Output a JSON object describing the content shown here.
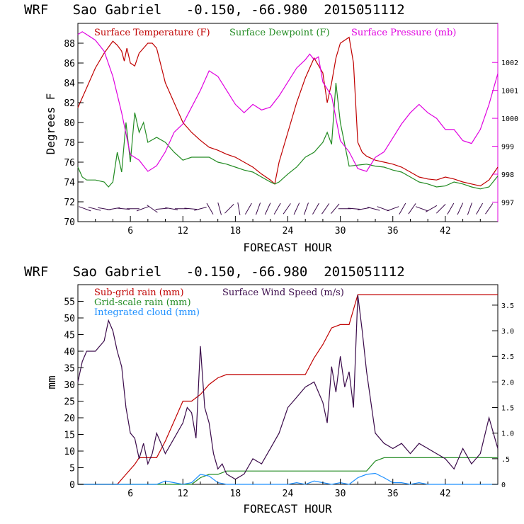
{
  "colors": {
    "temperature": "#c00000",
    "dewpoint": "#228b22",
    "pressure": "#e000e0",
    "subgrid": "#c00000",
    "gridscale": "#228b22",
    "cloud": "#1e90ff",
    "wind": "#3a0a4a",
    "axis": "#000000"
  },
  "chart_data": [
    {
      "type": "line",
      "title": "WRF   Sao Gabriel   -0.150, -66.980  2015051112",
      "xlabel": "FORECAST HOUR",
      "ylabel": "Degrees F",
      "xlim": [
        0,
        48
      ],
      "ylim": [
        70,
        90
      ],
      "y2lim": [
        996.3,
        1003.4
      ],
      "xticks": [
        6,
        12,
        18,
        24,
        30,
        36,
        42
      ],
      "yticks": [
        70,
        72,
        74,
        76,
        78,
        80,
        82,
        84,
        86,
        88
      ],
      "y2ticks": [
        997,
        998,
        999,
        1000,
        1001,
        1002
      ],
      "legend": [
        "Surface Temperature (F)",
        "Surface Dewpoint (F)",
        "Surface Pressure (mb)"
      ],
      "series": [
        {
          "name": "Surface Temperature (F)",
          "axis": "left",
          "color_key": "temperature",
          "x": [
            0,
            1,
            2,
            3,
            4,
            4.5,
            5,
            5.3,
            5.6,
            6,
            6.5,
            7,
            7.5,
            8,
            8.5,
            9,
            10,
            11,
            12,
            13,
            14,
            15,
            16,
            17,
            18,
            19,
            20,
            21,
            22,
            22.5,
            23,
            24,
            25,
            26,
            27,
            28,
            28.5,
            29,
            29.5,
            30,
            31,
            31.5,
            32,
            32.5,
            33,
            34,
            35,
            36,
            37,
            38,
            39,
            40,
            41,
            42,
            43,
            44,
            45,
            46,
            47,
            48
          ],
          "y": [
            81.5,
            83.5,
            85.5,
            87,
            88.2,
            87.8,
            87.2,
            86.2,
            87.5,
            86,
            85.7,
            87,
            87.5,
            88,
            88,
            87.5,
            84,
            82,
            80,
            79,
            78.2,
            77.5,
            77.2,
            76.8,
            76.5,
            76,
            75.5,
            74.8,
            74.2,
            73.8,
            76,
            79,
            82,
            84.5,
            86.5,
            85,
            82,
            84,
            86.5,
            88,
            88.6,
            86,
            78,
            77,
            76.6,
            76.2,
            76,
            75.8,
            75.5,
            75,
            74.5,
            74.3,
            74.2,
            74.5,
            74.3,
            74,
            73.8,
            73.6,
            74.2,
            75.5
          ]
        },
        {
          "name": "Surface Dewpoint (F)",
          "axis": "left",
          "color_key": "dewpoint",
          "x": [
            0,
            0.5,
            1,
            2,
            3,
            3.5,
            4,
            4.5,
            5,
            5.5,
            6,
            6.5,
            7,
            7.5,
            8,
            9,
            10,
            11,
            12,
            13,
            14,
            15,
            16,
            17,
            18,
            19,
            20,
            21,
            22,
            22.5,
            23,
            24,
            25,
            26,
            27,
            28,
            28.5,
            29,
            29.5,
            30,
            31,
            32,
            33,
            34,
            35,
            36,
            37,
            38,
            39,
            40,
            41,
            42,
            43,
            44,
            45,
            46,
            47,
            48
          ],
          "y": [
            75.5,
            74.5,
            74.2,
            74.2,
            74,
            73.5,
            74,
            77,
            75,
            80,
            76,
            81,
            79,
            80,
            78,
            78.5,
            78,
            77,
            76.2,
            76.5,
            76.5,
            76.5,
            76,
            75.8,
            75.5,
            75.2,
            75,
            74.5,
            74,
            73.8,
            74,
            74.8,
            75.5,
            76.5,
            77,
            78,
            79,
            77.8,
            84,
            80,
            75.6,
            75.7,
            75.8,
            75.6,
            75.5,
            75.2,
            75,
            74.5,
            74,
            73.8,
            73.5,
            73.6,
            74,
            73.8,
            73.5,
            73.3,
            73.5,
            74.6
          ]
        },
        {
          "name": "Surface Pressure (mb)",
          "axis": "right",
          "color_key": "pressure",
          "x": [
            0,
            0.5,
            1,
            2,
            3,
            4,
            5,
            6,
            7,
            8,
            9,
            10,
            11,
            12,
            13,
            14,
            15,
            16,
            17,
            18,
            19,
            20,
            21,
            22,
            23,
            24,
            25,
            26,
            26.5,
            27,
            27.5,
            28,
            29,
            30,
            31,
            32,
            33,
            34,
            35,
            36,
            37,
            38,
            39,
            40,
            41,
            42,
            43,
            44,
            45,
            46,
            47,
            48
          ],
          "y": [
            1003,
            1003.1,
            1003,
            1002.8,
            1002.4,
            1001.5,
            1000.2,
            998.7,
            998.5,
            998.1,
            998.3,
            998.8,
            999.5,
            999.8,
            1000.4,
            1001,
            1001.7,
            1001.5,
            1001,
            1000.5,
            1000.2,
            1000.5,
            1000.3,
            1000.4,
            1000.8,
            1001.3,
            1001.8,
            1002.1,
            1002.3,
            1002.1,
            1002.2,
            1001.3,
            1000.8,
            999.2,
            998.8,
            998.2,
            998.1,
            998.6,
            998.8,
            999.3,
            999.8,
            1000.2,
            1000.5,
            1000.2,
            1000,
            999.6,
            999.6,
            999.2,
            999.1,
            999.6,
            1000.5,
            1001.6
          ]
        }
      ],
      "wind_barbs_at_y": 71.3
    },
    {
      "type": "line",
      "title": "WRF   Sao Gabriel   -0.150, -66.980  2015051112",
      "xlabel": "FORECAST HOUR",
      "ylabel": "mm",
      "xlim": [
        0,
        48
      ],
      "ylim": [
        0,
        60
      ],
      "y2lim": [
        0,
        3.9
      ],
      "xticks": [
        6,
        12,
        18,
        24,
        30,
        36,
        42
      ],
      "yticks": [
        0,
        5,
        10,
        15,
        20,
        25,
        30,
        35,
        40,
        45,
        50,
        55
      ],
      "y2ticks": [
        0,
        0.5,
        1.0,
        1.5,
        2.0,
        2.5,
        3.0,
        3.5
      ],
      "y2ticklabels": [
        "0",
        ".5",
        "1.0",
        "1.5",
        "2.0",
        "2.5",
        "3.0",
        "3.5"
      ],
      "legend": [
        "Sub-grid rain (mm)",
        "Grid-scale rain (mm)",
        "Integrated cloud (mm)",
        "Surface Wind Speed (m/s)"
      ],
      "series": [
        {
          "name": "Sub-grid rain (mm)",
          "axis": "left",
          "color_key": "subgrid",
          "x": [
            0,
            4.5,
            5.5,
            6.5,
            7,
            9,
            10,
            11,
            12,
            13,
            14,
            15,
            16,
            17,
            26,
            27,
            28,
            29,
            30,
            31,
            32,
            48
          ],
          "y": [
            0,
            0,
            3,
            6,
            8,
            8,
            13,
            19,
            25,
            25,
            27,
            30,
            32,
            33,
            33,
            38,
            42,
            47,
            48,
            48,
            57,
            57
          ]
        },
        {
          "name": "Grid-scale rain (mm)",
          "axis": "left",
          "color_key": "gridscale",
          "x": [
            0,
            13,
            14,
            15,
            16,
            17,
            33,
            34,
            35,
            48
          ],
          "y": [
            0,
            0,
            2,
            3,
            3,
            4,
            4,
            7,
            8,
            8
          ]
        },
        {
          "name": "Integrated cloud (mm)",
          "axis": "left",
          "color_key": "cloud",
          "x": [
            0,
            9,
            10,
            11,
            12,
            13,
            14,
            15,
            16,
            17,
            24,
            25,
            26,
            27,
            28,
            29,
            30,
            31,
            32,
            33,
            34,
            35,
            36,
            37,
            38,
            39,
            40,
            48
          ],
          "y": [
            0,
            0,
            1,
            0.5,
            0,
            0.5,
            3,
            2.5,
            0.5,
            0,
            0,
            0.5,
            0,
            1,
            0.5,
            0,
            0.5,
            0,
            2,
            3,
            3.3,
            2,
            0.5,
            0.5,
            0,
            0.5,
            0,
            0
          ]
        },
        {
          "name": "Surface Wind Speed (m/s)",
          "axis": "right",
          "color_key": "wind",
          "x": [
            0,
            0.5,
            1,
            2,
            3,
            3.5,
            4,
            4.5,
            5,
            5.5,
            6,
            6.5,
            7,
            7.5,
            8,
            8.5,
            9,
            10,
            11,
            12,
            12.5,
            13,
            13.5,
            14,
            14.5,
            15,
            15.5,
            16,
            16.5,
            17,
            18,
            19,
            20,
            21,
            22,
            23,
            24,
            25,
            26,
            27,
            28,
            28.5,
            29,
            29.5,
            30,
            30.5,
            31,
            31.5,
            32,
            32.5,
            33,
            34,
            35,
            36,
            37,
            38,
            39,
            40,
            41,
            42,
            43,
            44,
            45,
            46,
            47,
            48
          ],
          "y": [
            2.0,
            2.4,
            2.6,
            2.6,
            2.8,
            3.2,
            3.0,
            2.6,
            2.3,
            1.5,
            1.0,
            0.9,
            0.5,
            0.8,
            0.4,
            0.6,
            1.0,
            0.6,
            0.9,
            1.2,
            1.5,
            1.4,
            0.9,
            2.7,
            1.5,
            1.2,
            0.6,
            0.3,
            0.4,
            0.2,
            0.1,
            0.2,
            0.5,
            0.4,
            0.7,
            1.0,
            1.5,
            1.7,
            1.9,
            2.0,
            1.6,
            1.2,
            2.3,
            1.8,
            2.5,
            1.9,
            2.2,
            1.5,
            3.7,
            3.0,
            2.2,
            1.0,
            0.8,
            0.7,
            0.8,
            0.6,
            0.8,
            0.7,
            0.6,
            0.5,
            0.3,
            0.7,
            0.4,
            0.6,
            1.3,
            0.7
          ]
        }
      ]
    }
  ]
}
